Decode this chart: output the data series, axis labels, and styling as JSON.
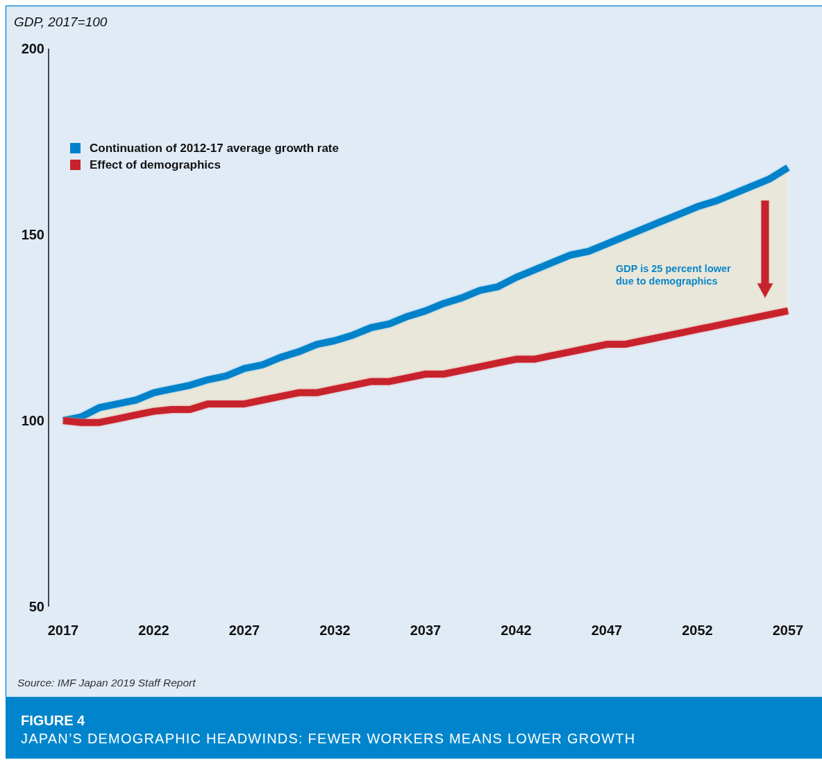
{
  "chart_data": {
    "type": "line",
    "title": "FIGURE 4",
    "subtitle": "JAPAN’S DEMOGRAPHIC HEADWINDS: FEWER WORKERS MEANS LOWER GROWTH",
    "ylabel": "GDP, 2017=100",
    "annotations": [
      "GDP is 25 percent lower due to demographics",
      "Source: IMF Japan 2019 Staff Report"
    ],
    "x": [
      2017,
      2018,
      2019,
      2020,
      2021,
      2022,
      2023,
      2024,
      2025,
      2026,
      2027,
      2028,
      2029,
      2030,
      2031,
      2032,
      2033,
      2034,
      2035,
      2036,
      2037,
      2038,
      2039,
      2040,
      2041,
      2042,
      2043,
      2044,
      2045,
      2046,
      2047,
      2048,
      2049,
      2050,
      2051,
      2052,
      2053,
      2054,
      2055,
      2056,
      2057
    ],
    "series": [
      {
        "name": "Continuation of 2012-17 average growth rate",
        "color": "#0082ca",
        "values": [
          100,
          101,
          103.5,
          104.5,
          105.5,
          107.5,
          108.5,
          109.5,
          111,
          112,
          114,
          115,
          117,
          118.5,
          120.5,
          121.5,
          123,
          125,
          126,
          128,
          129.5,
          131.5,
          133,
          135,
          136,
          138.5,
          140.5,
          142.5,
          144.5,
          145.5,
          147.5,
          149.5,
          151.5,
          153.5,
          155.5,
          157.5,
          159,
          161,
          163,
          165,
          168
        ],
        "lower": [
          100,
          99.5,
          99.5,
          100.5,
          101.5,
          102.5,
          103,
          103,
          104.5,
          104.5,
          104.5,
          105.5,
          106.5,
          107.5,
          107.5,
          108.5,
          109.5,
          110.5,
          110.5,
          111.5,
          112.5,
          112.5,
          113.5,
          114.5,
          115.5,
          116.5,
          116.5,
          117.5,
          118.5,
          119.5,
          120.5,
          120.5,
          121.5,
          122.5,
          123.5,
          124.5,
          125.5,
          126.5,
          127.5,
          128.5,
          129.5
        ],
        "upper": [
          100,
          101,
          103.5,
          104.5,
          105.5,
          107.5,
          108.5,
          109.5,
          111,
          112,
          114,
          115,
          117,
          118.5,
          120.5,
          121.5,
          123,
          125,
          126,
          128,
          129.5,
          131.5,
          133,
          135,
          136,
          138.5,
          140.5,
          142.5,
          144.5,
          145.5,
          147.5,
          149.5,
          151.5,
          153.5,
          155.5,
          157.5,
          159,
          161,
          163,
          165,
          168
        ]
      },
      {
        "name": "Effect of demographics",
        "color": "#c8232c",
        "values": [
          100,
          99.5,
          99.5,
          100.5,
          101.5,
          102.5,
          103,
          103,
          104.5,
          104.5,
          104.5,
          105.5,
          106.5,
          107.5,
          107.5,
          108.5,
          109.5,
          110.5,
          110.5,
          111.5,
          112.5,
          112.5,
          113.5,
          114.5,
          115.5,
          116.5,
          116.5,
          117.5,
          118.5,
          119.5,
          120.5,
          120.5,
          121.5,
          122.5,
          123.5,
          124.5,
          125.5,
          126.5,
          127.5,
          128.5,
          129.5
        ]
      }
    ],
    "xlim": [
      2017,
      2057
    ],
    "xticks": [
      2017,
      2022,
      2027,
      2032,
      2037,
      2042,
      2047,
      2052,
      2057
    ],
    "ylim": [
      50,
      200
    ],
    "yticks": [
      50,
      100,
      150,
      200
    ],
    "legend": "top left",
    "line_style": "solid"
  }
}
